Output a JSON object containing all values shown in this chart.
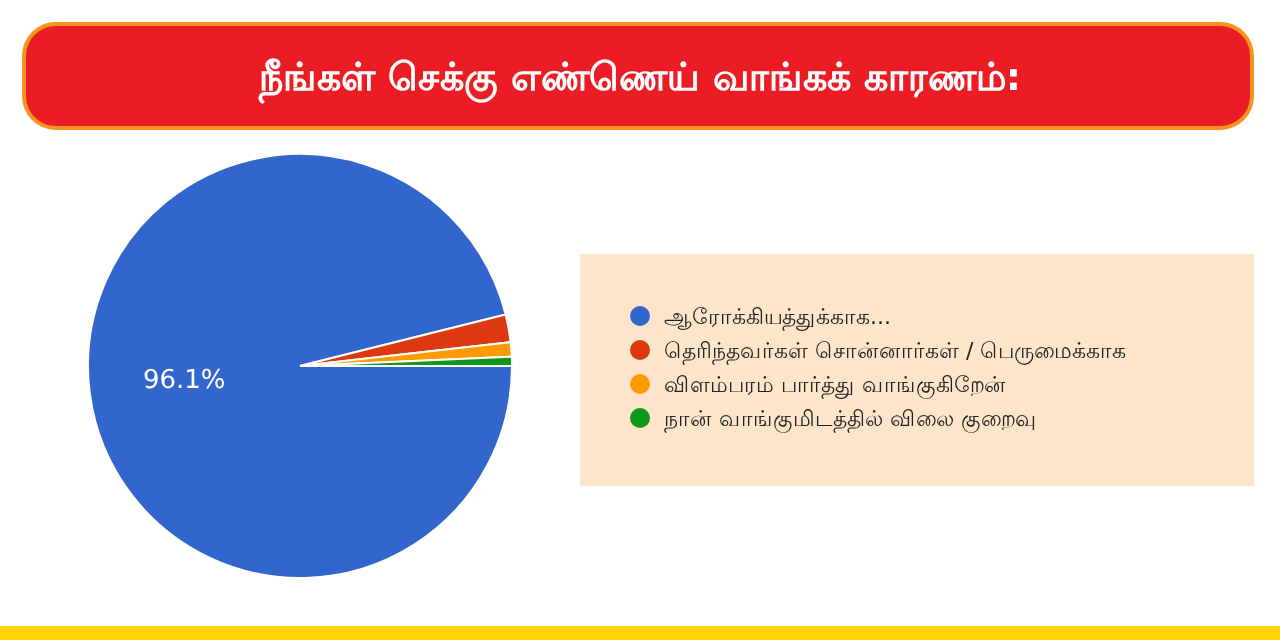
{
  "chart_data": {
    "type": "pie",
    "title": "நீங்கள் செக்கு எண்ணெய் வாங்கக் காரணம்:",
    "categories": [
      "ஆரோக்கியத்துக்காக...",
      "தெரிந்தவர்கள் சொன்னார்கள் / பெருமைக்காக",
      "விளம்பரம் பார்த்து வாங்குகிறேன்",
      "நான் வாங்குமிடத்தில் விலை குறைவு"
    ],
    "values": [
      96.1,
      2.1,
      1.1,
      0.7
    ],
    "colors": [
      "#3366cc",
      "#dc3912",
      "#ff9900",
      "#109618"
    ],
    "value_labels": [
      "96.1%",
      null,
      null,
      null
    ],
    "legend": "right"
  }
}
